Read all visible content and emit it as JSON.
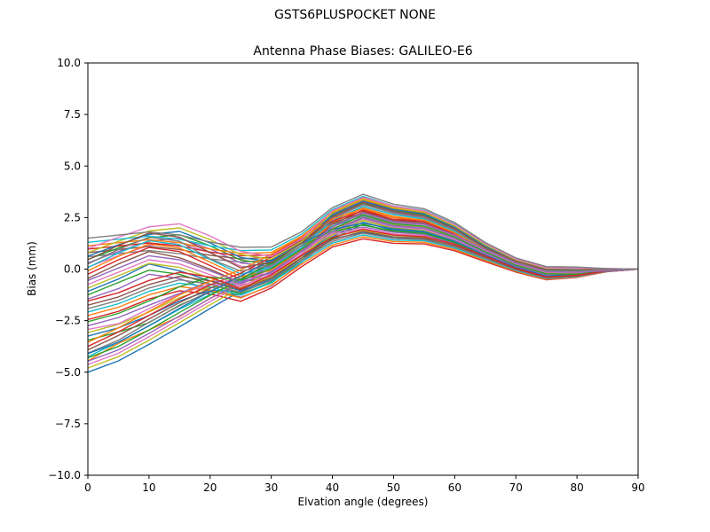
{
  "chart_data": {
    "type": "line",
    "title": "GSTS6PLUSPOCKET NONE",
    "axes_title": "Antenna Phase Biases: GALILEO-E6",
    "xlabel": "Elvation angle (degrees)",
    "ylabel": "Bias (mm)",
    "xlim": [
      0,
      90
    ],
    "ylim": [
      -10,
      10
    ],
    "grid": false,
    "legend": "none",
    "x_ticks": {
      "values": [
        0,
        10,
        20,
        30,
        40,
        50,
        60,
        70,
        80,
        90
      ],
      "labels": [
        "0",
        "10",
        "20",
        "30",
        "40",
        "50",
        "60",
        "70",
        "80",
        "90"
      ]
    },
    "y_ticks": {
      "values": [
        10,
        7.5,
        5,
        2.5,
        0,
        -2.5,
        -5,
        -7.5,
        -10
      ],
      "labels": [
        "10.0",
        "7.5",
        "5.0",
        "2.5",
        "0.0",
        "−2.5",
        "−5.0",
        "−7.5",
        "−10.0"
      ]
    },
    "x": [
      0,
      5,
      10,
      15,
      20,
      25,
      30,
      35,
      40,
      45,
      50,
      55,
      60,
      65,
      70,
      75,
      80,
      85,
      90
    ],
    "palette": [
      "#1f77b4",
      "#ff7f0e",
      "#2ca02c",
      "#d62728",
      "#9467bd",
      "#8c564b",
      "#e377c2",
      "#7f7f7f",
      "#bcbd22",
      "#17becf"
    ],
    "line_width": 1.4,
    "series": [
      [
        -5.0,
        -4.45,
        -3.65,
        -2.8,
        -1.91,
        -1.06,
        -0.22,
        0.73,
        1.47,
        1.77,
        1.55,
        1.47,
        1.04,
        0.41,
        -0.09,
        -0.47,
        -0.35,
        -0.12,
        0.0
      ],
      [
        -4.45,
        -3.6,
        -2.95,
        -2.3,
        -1.41,
        -0.76,
        0.08,
        1.03,
        1.97,
        2.47,
        2.1,
        2.02,
        1.44,
        0.66,
        0.11,
        -0.27,
        -0.25,
        -0.12,
        0.0
      ],
      [
        -3.45,
        -3.05,
        -2.6,
        -1.75,
        -1.1,
        -1.26,
        -0.62,
        0.43,
        1.47,
        2.17,
        1.8,
        1.72,
        1.24,
        0.56,
        0.01,
        -0.37,
        -0.35,
        -0.12,
        0.0
      ],
      [
        -2.45,
        -2.05,
        -1.45,
        -1.05,
        -1.21,
        -1.56,
        -0.92,
        0.13,
        1.07,
        1.47,
        1.25,
        1.22,
        0.89,
        0.36,
        -0.14,
        -0.52,
        -0.4,
        -0.12,
        0.0
      ],
      [
        -1.45,
        -0.95,
        -0.25,
        -0.45,
        -1.05,
        -1.36,
        -0.82,
        0.33,
        1.57,
        2.27,
        1.9,
        1.82,
        1.34,
        0.66,
        0.11,
        -0.27,
        -0.25,
        -0.12,
        0.0
      ],
      [
        -0.45,
        0.25,
        0.85,
        0.55,
        -0.01,
        -0.66,
        -0.32,
        0.73,
        2.07,
        2.77,
        2.4,
        2.22,
        1.64,
        0.76,
        0.21,
        -0.17,
        -0.15,
        -0.02,
        0.0
      ],
      [
        0.1,
        0.65,
        1.15,
        1.3,
        0.79,
        0.14,
        -0.02,
        0.93,
        2.37,
        3.02,
        2.65,
        2.47,
        1.84,
        0.96,
        0.31,
        -0.07,
        -0.05,
        -0.02,
        0.0
      ],
      [
        0.6,
        0.75,
        0.9,
        0.75,
        0.49,
        0.34,
        0.43,
        1.28,
        2.52,
        3.17,
        2.75,
        2.57,
        1.94,
        1.01,
        0.36,
        -0.02,
        0.0,
        -0.02,
        0.0
      ],
      [
        -4.8,
        -4.25,
        -3.45,
        -2.6,
        -1.73,
        -0.9,
        -0.08,
        0.85,
        1.57,
        1.87,
        1.64,
        1.55,
        1.11,
        0.47,
        -0.05,
        -0.44,
        -0.33,
        -0.11,
        0.0
      ],
      [
        -4.25,
        -3.55,
        -2.75,
        -1.95,
        -1.23,
        -0.6,
        0.22,
        1.15,
        2.07,
        2.57,
        2.19,
        2.1,
        1.51,
        0.72,
        0.15,
        -0.24,
        -0.23,
        -0.11,
        0.0
      ],
      [
        -3.25,
        -2.85,
        -2.25,
        -1.55,
        -1.03,
        -1.1,
        -0.48,
        0.55,
        1.57,
        2.27,
        1.89,
        1.8,
        1.31,
        0.62,
        0.05,
        -0.34,
        -0.33,
        -0.11,
        0.0
      ],
      [
        -2.25,
        -1.85,
        -1.25,
        -0.85,
        -1.03,
        -1.4,
        -0.78,
        0.25,
        1.17,
        1.57,
        1.34,
        1.3,
        0.96,
        0.42,
        -0.1,
        -0.49,
        -0.38,
        -0.11,
        0.0
      ],
      [
        -1.25,
        -0.65,
        -0.05,
        -0.25,
        -0.73,
        -1.2,
        -0.68,
        0.45,
        1.67,
        2.37,
        1.99,
        1.9,
        1.41,
        0.72,
        0.15,
        -0.24,
        -0.23,
        -0.11,
        0.0
      ],
      [
        -0.25,
        0.45,
        1.05,
        0.85,
        0.17,
        -0.5,
        -0.18,
        0.85,
        2.17,
        2.87,
        2.49,
        2.3,
        1.71,
        0.82,
        0.25,
        -0.14,
        -0.13,
        -0.01,
        0.0
      ],
      [
        0.3,
        0.85,
        1.35,
        1.5,
        0.97,
        0.3,
        0.12,
        1.05,
        2.47,
        3.12,
        2.74,
        2.55,
        1.91,
        1.02,
        0.35,
        -0.04,
        -0.03,
        -0.01,
        0.0
      ],
      [
        0.8,
        0.95,
        1.1,
        0.95,
        0.67,
        0.5,
        0.57,
        1.4,
        2.62,
        3.27,
        2.84,
        2.65,
        2.01,
        1.07,
        0.4,
        0.01,
        0.02,
        -0.01,
        0.0
      ],
      [
        -4.63,
        -4.08,
        -3.28,
        -2.43,
        -1.57,
        -0.76,
        0.04,
        0.95,
        1.66,
        1.96,
        1.71,
        1.62,
        1.17,
        0.53,
        -0.02,
        -0.41,
        -0.31,
        -0.1,
        0.0
      ],
      [
        -4.08,
        -3.45,
        -2.58,
        -1.78,
        -1.07,
        -0.46,
        0.34,
        1.25,
        2.16,
        2.66,
        2.26,
        2.17,
        1.57,
        0.78,
        0.18,
        -0.21,
        -0.21,
        -0.1,
        0.0
      ],
      [
        -3.08,
        -2.68,
        -2.08,
        -1.38,
        -0.87,
        -0.96,
        -0.36,
        0.65,
        1.66,
        2.36,
        1.96,
        1.87,
        1.37,
        0.68,
        0.08,
        -0.31,
        -0.31,
        -0.1,
        0.0
      ],
      [
        -2.08,
        -1.68,
        -1.08,
        -0.68,
        -0.87,
        -1.26,
        -0.66,
        0.35,
        1.26,
        1.66,
        1.41,
        1.37,
        1.02,
        0.48,
        -0.07,
        -0.46,
        -0.36,
        -0.1,
        0.0
      ],
      [
        -1.08,
        -0.48,
        0.25,
        -0.08,
        -0.57,
        -1.06,
        -0.56,
        0.55,
        1.76,
        2.46,
        2.06,
        1.97,
        1.47,
        0.78,
        0.18,
        -0.21,
        -0.21,
        -0.1,
        0.0
      ],
      [
        -0.08,
        0.62,
        1.22,
        1.02,
        0.33,
        -0.36,
        -0.06,
        0.95,
        2.26,
        2.96,
        2.56,
        2.37,
        1.77,
        0.88,
        0.28,
        -0.11,
        -0.11,
        0.0,
        0.0
      ],
      [
        0.47,
        1.02,
        1.52,
        1.67,
        1.13,
        0.44,
        0.24,
        1.15,
        2.56,
        3.21,
        2.81,
        2.62,
        1.97,
        1.08,
        0.38,
        -0.01,
        -0.01,
        0.0,
        0.0
      ],
      [
        0.97,
        1.12,
        1.27,
        1.12,
        0.83,
        0.64,
        0.69,
        1.5,
        2.71,
        3.36,
        2.91,
        2.72,
        2.07,
        1.13,
        0.43,
        0.04,
        0.04,
        0.0,
        0.0
      ],
      [
        -4.47,
        -3.92,
        -3.12,
        -2.27,
        -1.43,
        -0.64,
        0.16,
        1.05,
        1.74,
        2.04,
        1.79,
        1.68,
        1.23,
        0.57,
        0.02,
        -0.39,
        -0.29,
        -0.1,
        0.0
      ],
      [
        -3.92,
        -3.22,
        -2.42,
        -1.62,
        -0.93,
        -0.34,
        0.46,
        1.35,
        2.24,
        2.74,
        2.34,
        2.23,
        1.63,
        0.82,
        0.22,
        -0.19,
        -0.19,
        -0.1,
        0.0
      ],
      [
        -2.92,
        -2.65,
        -1.92,
        -1.22,
        -0.73,
        -0.84,
        -0.24,
        0.75,
        1.74,
        2.44,
        2.04,
        1.93,
        1.43,
        0.72,
        0.12,
        -0.29,
        -0.29,
        -0.1,
        0.0
      ],
      [
        -1.92,
        -1.52,
        -0.92,
        -0.52,
        -0.73,
        -1.14,
        -0.54,
        0.45,
        1.34,
        1.74,
        1.49,
        1.43,
        1.08,
        0.52,
        -0.03,
        -0.44,
        -0.34,
        -0.1,
        0.0
      ],
      [
        -0.92,
        -0.32,
        0.28,
        0.08,
        -0.43,
        -0.94,
        -0.44,
        0.65,
        1.84,
        2.54,
        2.14,
        2.03,
        1.53,
        0.82,
        0.22,
        -0.19,
        -0.19,
        -0.1,
        0.0
      ],
      [
        0.08,
        0.78,
        1.38,
        1.18,
        0.47,
        -0.24,
        0.06,
        1.05,
        2.34,
        3.04,
        2.64,
        2.43,
        1.83,
        0.92,
        0.32,
        -0.09,
        -0.09,
        0.0,
        0.0
      ],
      [
        0.63,
        1.18,
        1.68,
        1.83,
        1.27,
        0.56,
        0.36,
        1.25,
        2.64,
        3.29,
        2.89,
        2.68,
        2.03,
        1.12,
        0.42,
        0.01,
        0.01,
        0.0,
        0.0
      ],
      [
        1.13,
        1.28,
        1.43,
        1.28,
        0.97,
        0.76,
        0.81,
        1.6,
        2.79,
        3.44,
        2.99,
        2.78,
        2.13,
        1.17,
        0.47,
        0.06,
        0.06,
        0.0,
        0.0
      ],
      [
        -4.3,
        -3.75,
        -2.95,
        -2.1,
        -1.27,
        -0.5,
        0.28,
        1.15,
        1.83,
        2.13,
        1.86,
        1.75,
        1.29,
        0.63,
        0.05,
        -0.36,
        -0.27,
        -0.09,
        0.0
      ],
      [
        -3.75,
        -3.05,
        -2.25,
        -1.45,
        -0.77,
        -0.2,
        0.58,
        1.45,
        2.33,
        2.83,
        2.41,
        2.3,
        1.69,
        0.88,
        0.25,
        -0.16,
        -0.17,
        -0.09,
        0.0
      ],
      [
        -2.75,
        -2.35,
        -1.75,
        -1.18,
        -0.57,
        -0.7,
        -0.12,
        0.85,
        1.83,
        2.53,
        2.11,
        2.0,
        1.49,
        0.78,
        0.15,
        -0.26,
        -0.27,
        -0.09,
        0.0
      ],
      [
        -1.75,
        -1.35,
        -0.75,
        -0.35,
        -0.57,
        -1.0,
        -0.42,
        0.55,
        1.43,
        1.83,
        1.56,
        1.5,
        1.14,
        0.58,
        0.0,
        -0.41,
        -0.32,
        -0.09,
        0.0
      ],
      [
        -0.75,
        -0.15,
        0.45,
        0.25,
        -0.27,
        -0.8,
        -0.32,
        0.75,
        1.93,
        2.63,
        2.21,
        2.1,
        1.59,
        0.88,
        0.25,
        -0.16,
        -0.17,
        -0.09,
        0.0
      ],
      [
        0.25,
        0.95,
        1.55,
        1.35,
        0.5,
        -0.1,
        0.18,
        1.15,
        2.43,
        3.13,
        2.71,
        2.5,
        1.89,
        0.98,
        0.35,
        -0.06,
        -0.07,
        0.01,
        0.0
      ],
      [
        0.8,
        1.35,
        1.85,
        2.0,
        1.43,
        0.7,
        0.48,
        1.35,
        2.73,
        3.38,
        2.96,
        2.75,
        2.09,
        1.18,
        0.45,
        0.04,
        0.03,
        0.01,
        0.0
      ],
      [
        1.3,
        1.45,
        1.6,
        1.45,
        1.13,
        0.9,
        0.93,
        1.7,
        2.88,
        3.53,
        3.06,
        2.85,
        2.19,
        1.23,
        0.5,
        0.09,
        0.08,
        0.01,
        0.0
      ],
      [
        -4.1,
        -3.55,
        -2.75,
        -1.9,
        -1.09,
        -0.34,
        0.42,
        1.27,
        1.93,
        2.23,
        1.95,
        1.83,
        1.36,
        0.69,
        0.09,
        -0.33,
        -0.25,
        -0.08,
        0.0
      ],
      [
        -3.55,
        -2.85,
        -2.05,
        -1.25,
        -0.59,
        -0.04,
        0.72,
        1.57,
        2.43,
        2.93,
        2.5,
        2.38,
        1.76,
        0.94,
        0.29,
        -0.13,
        -0.15,
        -0.08,
        0.0
      ],
      [
        -2.55,
        -2.15,
        -1.55,
        -0.85,
        -0.39,
        -0.54,
        0.02,
        0.97,
        1.93,
        2.63,
        2.2,
        2.08,
        1.56,
        0.84,
        0.19,
        -0.23,
        -0.25,
        -0.08,
        0.0
      ],
      [
        -1.55,
        -1.15,
        -0.55,
        -0.15,
        -0.39,
        -0.95,
        -0.28,
        0.67,
        1.53,
        1.93,
        1.65,
        1.58,
        1.21,
        0.64,
        0.04,
        -0.38,
        -0.3,
        -0.08,
        0.0
      ],
      [
        -0.55,
        0.05,
        0.65,
        0.45,
        -0.09,
        -0.64,
        -0.18,
        0.87,
        2.03,
        2.73,
        2.3,
        2.18,
        1.66,
        0.94,
        0.29,
        -0.13,
        -0.15,
        -0.08,
        0.0
      ],
      [
        0.45,
        1.15,
        1.75,
        1.55,
        0.81,
        0.06,
        0.32,
        1.27,
        2.53,
        3.23,
        2.8,
        2.58,
        1.96,
        1.04,
        0.39,
        -0.03,
        -0.05,
        0.02,
        0.0
      ],
      [
        1.0,
        1.55,
        2.05,
        2.2,
        1.61,
        0.86,
        0.62,
        1.47,
        2.83,
        3.48,
        3.05,
        2.83,
        2.16,
        1.24,
        0.49,
        0.07,
        0.05,
        0.02,
        0.0
      ],
      [
        1.5,
        1.65,
        1.8,
        1.65,
        1.31,
        1.06,
        1.07,
        1.82,
        2.98,
        3.63,
        3.15,
        2.93,
        2.26,
        1.29,
        0.54,
        0.12,
        0.1,
        0.02,
        0.0
      ]
    ]
  }
}
